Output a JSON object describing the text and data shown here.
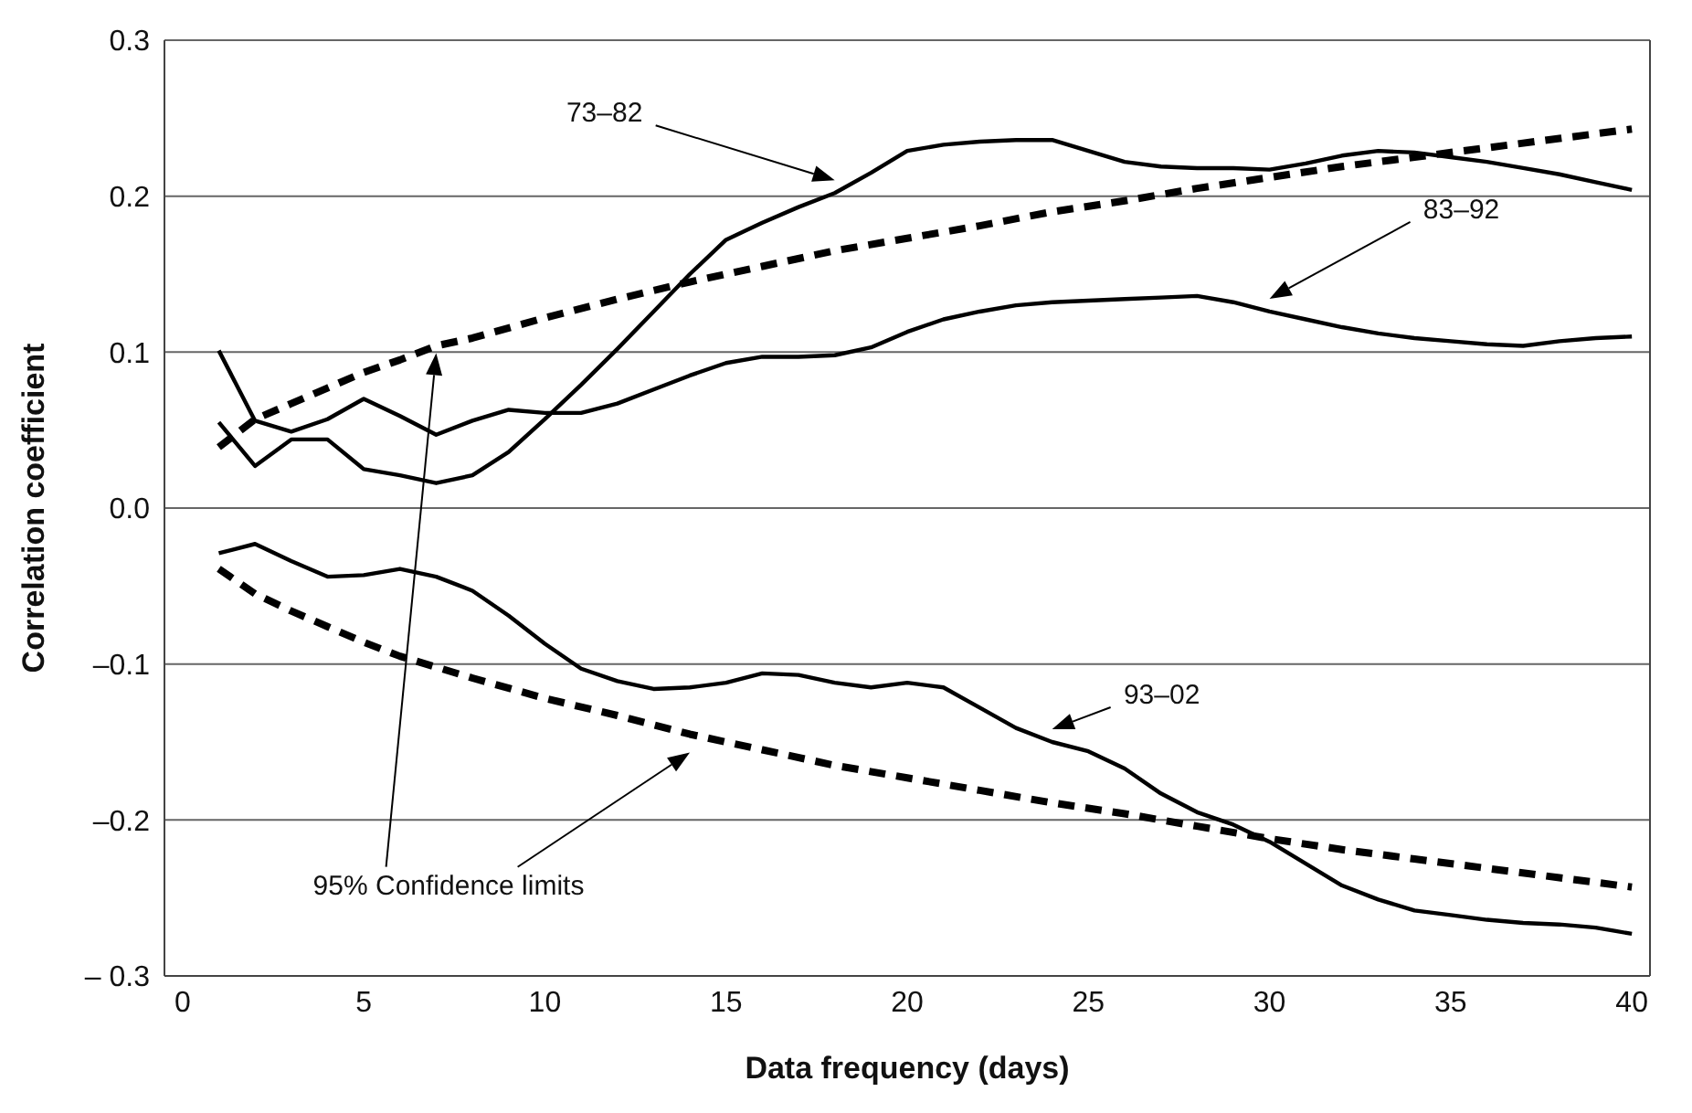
{
  "chart_data": {
    "type": "line",
    "xlabel": "Data frequency (days)",
    "ylabel": "Correlation coefficient",
    "xlim": [
      -0.5,
      40.5
    ],
    "xticks": [
      0,
      5,
      10,
      15,
      20,
      25,
      30,
      35,
      40
    ],
    "ylim": [
      -0.3,
      0.3
    ],
    "yticks": [
      {
        "value": -0.3,
        "label": "– 0.3"
      },
      {
        "value": -0.2,
        "label": "–0.2"
      },
      {
        "value": -0.1,
        "label": "–0.1"
      },
      {
        "value": 0,
        "label": "0.0"
      },
      0.1,
      0.2,
      0.3
    ],
    "grid": "y",
    "annotations": [
      "95% Confidence limits"
    ],
    "series": [
      {
        "name": "73–82",
        "color": "#000000",
        "line_style": "solid",
        "x": [
          1,
          2,
          3,
          4,
          5,
          6,
          7,
          8,
          9,
          10,
          11,
          12,
          13,
          14,
          15,
          16,
          17,
          18,
          19,
          20,
          21,
          22,
          23,
          24,
          25,
          26,
          27,
          28,
          29,
          30,
          31,
          32,
          33,
          34,
          35,
          36,
          37,
          38,
          39,
          40
        ],
        "values": [
          0.055,
          0.027,
          0.044,
          0.044,
          0.025,
          0.021,
          0.016,
          0.021,
          0.036,
          0.057,
          0.079,
          0.102,
          0.126,
          0.15,
          0.172,
          0.183,
          0.193,
          0.202,
          0.215,
          0.229,
          0.233,
          0.235,
          0.236,
          0.236,
          0.229,
          0.222,
          0.219,
          0.218,
          0.218,
          0.217,
          0.221,
          0.226,
          0.229,
          0.228,
          0.225,
          0.222,
          0.218,
          0.214,
          0.209,
          0.204
        ]
      },
      {
        "name": "83–92",
        "color": "#000000",
        "line_style": "solid",
        "x": [
          1,
          2,
          3,
          4,
          5,
          6,
          7,
          8,
          9,
          10,
          11,
          12,
          13,
          14,
          15,
          16,
          17,
          18,
          19,
          20,
          21,
          22,
          23,
          24,
          25,
          26,
          27,
          28,
          29,
          30,
          31,
          32,
          33,
          34,
          35,
          36,
          37,
          38,
          39,
          40
        ],
        "values": [
          0.101,
          0.056,
          0.049,
          0.057,
          0.07,
          0.059,
          0.047,
          0.056,
          0.063,
          0.061,
          0.061,
          0.067,
          0.076,
          0.085,
          0.093,
          0.097,
          0.097,
          0.098,
          0.103,
          0.113,
          0.121,
          0.126,
          0.13,
          0.132,
          0.133,
          0.134,
          0.135,
          0.136,
          0.132,
          0.126,
          0.121,
          0.116,
          0.112,
          0.109,
          0.107,
          0.105,
          0.104,
          0.107,
          0.109,
          0.11
        ]
      },
      {
        "name": "93–02",
        "color": "#000000",
        "line_style": "solid",
        "x": [
          1,
          2,
          3,
          4,
          5,
          6,
          7,
          8,
          9,
          10,
          11,
          12,
          13,
          14,
          15,
          16,
          17,
          18,
          19,
          20,
          21,
          22,
          23,
          24,
          25,
          26,
          27,
          28,
          29,
          30,
          31,
          32,
          33,
          34,
          35,
          36,
          37,
          38,
          39,
          40
        ],
        "values": [
          -0.029,
          -0.023,
          -0.034,
          -0.044,
          -0.043,
          -0.039,
          -0.044,
          -0.053,
          -0.069,
          -0.087,
          -0.103,
          -0.111,
          -0.116,
          -0.115,
          -0.112,
          -0.106,
          -0.107,
          -0.112,
          -0.115,
          -0.112,
          -0.115,
          -0.128,
          -0.141,
          -0.15,
          -0.156,
          -0.167,
          -0.183,
          -0.195,
          -0.203,
          -0.214,
          -0.228,
          -0.242,
          -0.251,
          -0.258,
          -0.261,
          -0.264,
          -0.266,
          -0.267,
          -0.269,
          -0.273
        ]
      },
      {
        "color": "#000000",
        "line_style": "dashed",
        "x": [
          1,
          2,
          3,
          4,
          5,
          6,
          7,
          8,
          10,
          12,
          14,
          16,
          18,
          20,
          22,
          24,
          26,
          28,
          30,
          32,
          34,
          36,
          38,
          40
        ],
        "values": [
          0.039,
          0.057,
          0.067,
          0.077,
          0.087,
          0.095,
          0.104,
          0.109,
          0.122,
          0.134,
          0.145,
          0.155,
          0.165,
          0.173,
          0.181,
          0.19,
          0.197,
          0.205,
          0.212,
          0.219,
          0.225,
          0.231,
          0.237,
          0.243
        ]
      },
      {
        "color": "#000000",
        "line_style": "dashed",
        "x": [
          1,
          2,
          3,
          4,
          5,
          6,
          7,
          8,
          10,
          12,
          14,
          16,
          18,
          20,
          22,
          24,
          26,
          28,
          30,
          32,
          34,
          36,
          38,
          40
        ],
        "values": [
          -0.039,
          -0.055,
          -0.066,
          -0.076,
          -0.086,
          -0.095,
          -0.102,
          -0.109,
          -0.122,
          -0.133,
          -0.145,
          -0.155,
          -0.165,
          -0.173,
          -0.181,
          -0.189,
          -0.196,
          -0.204,
          -0.212,
          -0.219,
          -0.225,
          -0.231,
          -0.237,
          -0.243
        ]
      }
    ]
  }
}
